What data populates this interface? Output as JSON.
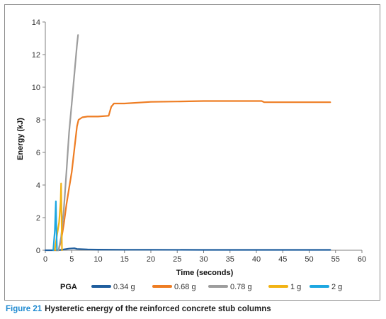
{
  "chart_data": {
    "type": "line",
    "xlabel": "Time (seconds)",
    "ylabel": "Energy (kJ)",
    "xlim": [
      0,
      60
    ],
    "ylim": [
      0,
      14
    ],
    "xticks": [
      0,
      5,
      10,
      15,
      20,
      25,
      30,
      35,
      40,
      45,
      50,
      55,
      60
    ],
    "yticks": [
      0,
      2,
      4,
      6,
      8,
      10,
      12,
      14
    ],
    "grid": false,
    "legend_title": "PGA",
    "legend_position": "bottom",
    "series": [
      {
        "name": "0.34 g",
        "color": "#1f5e9e",
        "x": [
          0,
          2.5,
          3.5,
          4.5,
          5.5,
          6,
          8,
          10,
          15,
          20,
          30,
          40,
          50,
          54
        ],
        "y": [
          0,
          0,
          0.05,
          0.1,
          0.12,
          0.08,
          0.05,
          0.04,
          0.03,
          0.03,
          0.02,
          0.02,
          0.02,
          0.02
        ]
      },
      {
        "name": "0.68 g",
        "color": "#ee7d23",
        "x": [
          2,
          2.5,
          3,
          3.5,
          4,
          4.5,
          5,
          5.5,
          6,
          6.3,
          7,
          8,
          10,
          12,
          12.5,
          13,
          15,
          20,
          25,
          30,
          35,
          41,
          41.5,
          45,
          50,
          54
        ],
        "y": [
          0,
          0,
          0.6,
          1.6,
          2.8,
          3.8,
          4.8,
          6.2,
          7.6,
          8.0,
          8.15,
          8.2,
          8.2,
          8.25,
          8.8,
          9.0,
          9.0,
          9.1,
          9.12,
          9.15,
          9.15,
          9.15,
          9.08,
          9.08,
          9.08,
          9.08
        ]
      },
      {
        "name": "0.78 g",
        "color": "#9d9d9d",
        "x": [
          2.5,
          3,
          3.5,
          4,
          4.5,
          5,
          5.5,
          6,
          6.2
        ],
        "y": [
          0,
          0.8,
          2.5,
          4.8,
          7.2,
          9.0,
          10.8,
          12.6,
          13.2
        ]
      },
      {
        "name": "1 g",
        "color": "#f2b314",
        "x": [
          1.8,
          2.2,
          2.6,
          2.9,
          3.0,
          3.15
        ],
        "y": [
          0,
          0.9,
          1.7,
          3.0,
          4.1,
          0
        ]
      },
      {
        "name": "2 g",
        "color": "#1ea7e1",
        "x": [
          1.5,
          1.8,
          2.0,
          2.1,
          2.2
        ],
        "y": [
          0,
          1.2,
          3.0,
          1.5,
          0
        ]
      }
    ]
  },
  "caption": {
    "number": "Figure 21",
    "text": "Hysteretic energy of the reinforced concrete stub columns"
  }
}
